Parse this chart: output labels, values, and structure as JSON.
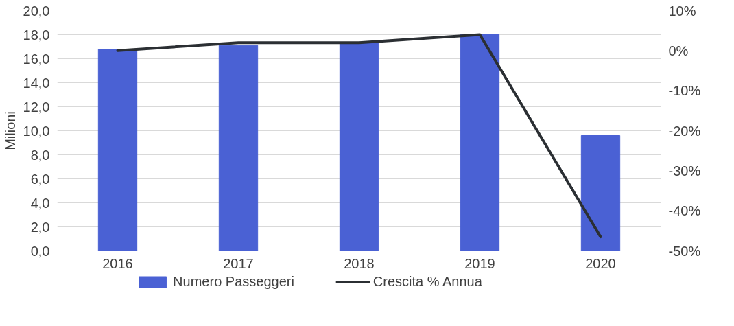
{
  "chart_data": {
    "type": "bar",
    "categories": [
      "2016",
      "2017",
      "2018",
      "2019",
      "2020"
    ],
    "ylabel": "Milioni",
    "series": [
      {
        "name": "Numero Passeggeri",
        "color": "#4a61d4",
        "values": [
          16.8,
          17.1,
          17.3,
          18.0,
          9.6
        ]
      },
      {
        "name": "Crescita % Annua",
        "type": "line",
        "axis": "y2",
        "color": "#2b2f33",
        "values": [
          0,
          2,
          2,
          4,
          -46.5
        ]
      }
    ],
    "ylim": [
      0,
      20
    ],
    "yticks": [
      {
        "value": 0,
        "label": "0,0"
      },
      {
        "value": 2,
        "label": "2,0"
      },
      {
        "value": 4,
        "label": "4,0"
      },
      {
        "value": 6,
        "label": "6,0"
      },
      {
        "value": 8,
        "label": "8,0"
      },
      {
        "value": 10,
        "label": "10,0"
      },
      {
        "value": 12,
        "label": "12,0"
      },
      {
        "value": 14,
        "label": "14,0"
      },
      {
        "value": 16,
        "label": "16,0"
      },
      {
        "value": 18,
        "label": "18,0"
      },
      {
        "value": 20,
        "label": "20,0"
      }
    ],
    "y2lim": [
      -50,
      10
    ],
    "y2ticks": [
      {
        "value": -50,
        "label": "-50%"
      },
      {
        "value": -40,
        "label": "-40%"
      },
      {
        "value": -30,
        "label": "-30%"
      },
      {
        "value": -20,
        "label": "-20%"
      },
      {
        "value": -10,
        "label": "-10%"
      },
      {
        "value": 0,
        "label": "0%"
      },
      {
        "value": 10,
        "label": "10%"
      }
    ],
    "grid": "y",
    "legend": "bottom",
    "marker": "none",
    "line_style": "solid"
  }
}
